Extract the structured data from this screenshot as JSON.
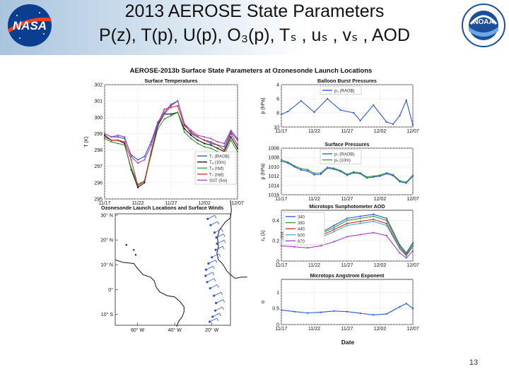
{
  "slide": {
    "title_line1": "2013 AEROSE State Parameters",
    "title_line2": "P(z), T(p), U(p), O₃(p), Tₛ , uₛ , vₛ , AOD",
    "page_number": "13",
    "logo_left": "NASA",
    "logo_right": "NOAA"
  },
  "figure": {
    "title": "AEROSE-2013b Surface State Parameters at Ozonesonde Launch Locations",
    "xlabel": "Date"
  },
  "colors": {
    "blue": "#2a55d8",
    "black": "#111111",
    "green": "#2e9a3a",
    "red": "#d42a2a",
    "purple": "#a040c0",
    "grey": "#999999",
    "cyan": "#4aa8c8"
  },
  "chart_data": [
    {
      "id": "surface-temperatures",
      "type": "line",
      "title": "Surface Temperatures",
      "xlabel": "",
      "ylabel": "T (K)",
      "xlim": [
        0,
        20
      ],
      "ylim": [
        295,
        302
      ],
      "yticks": [
        295,
        296,
        297,
        298,
        299,
        300,
        301,
        302
      ],
      "xticks": [
        0,
        5,
        10,
        15,
        20
      ],
      "xticklabels": [
        "11/17",
        "11/22",
        "11/27",
        "12/02",
        "12/07"
      ],
      "series": [
        {
          "name": "Tₛ (RAOB)",
          "color": "#2a55d8",
          "x": [
            0,
            1,
            2,
            3,
            4,
            5,
            6,
            7,
            8,
            9,
            10,
            11,
            12,
            13,
            14,
            15,
            16,
            17,
            18,
            19,
            20
          ],
          "values": [
            299.0,
            298.8,
            298.8,
            298.7,
            297.7,
            297.4,
            297.6,
            298.5,
            299.7,
            300.3,
            300.8,
            301.0,
            299.6,
            299.0,
            298.8,
            298.6,
            298.4,
            298.3,
            298.2,
            299.1,
            298.6
          ]
        },
        {
          "name": "Tₐ (10m)",
          "color": "#111111",
          "x": [
            0,
            1,
            2,
            3,
            4,
            5,
            6,
            7,
            8,
            9,
            10,
            11,
            12,
            13,
            14,
            15,
            16,
            17,
            18,
            19,
            20
          ],
          "values": [
            298.9,
            298.6,
            298.6,
            298.4,
            296.8,
            295.7,
            296.0,
            297.8,
            299.5,
            300.2,
            300.2,
            300.3,
            299.3,
            298.9,
            298.6,
            298.4,
            298.3,
            298.1,
            297.9,
            298.8,
            298.1
          ]
        },
        {
          "name": "Tₐ (rad)",
          "color": "#2e9a3a",
          "x": [
            0,
            1,
            2,
            3,
            4,
            5,
            6,
            7,
            8,
            9,
            10,
            11,
            12,
            13,
            14,
            15,
            16,
            17,
            18,
            19,
            20
          ],
          "values": [
            298.7,
            298.5,
            298.4,
            298.3,
            296.9,
            295.9,
            296.1,
            297.7,
            299.3,
            299.9,
            300.1,
            300.3,
            299.1,
            298.7,
            298.4,
            298.2,
            298.1,
            297.9,
            297.7,
            298.6,
            297.9
          ]
        },
        {
          "name": "Tₛ (rad)",
          "color": "#d42a2a",
          "x": [
            0,
            1,
            2,
            3,
            4,
            5,
            6,
            7,
            8,
            9,
            10,
            11,
            12,
            13,
            14,
            15,
            16,
            17,
            18,
            19,
            20
          ],
          "values": [
            298.8,
            298.6,
            298.6,
            298.5,
            297.4,
            295.8,
            296.1,
            297.9,
            299.6,
            300.5,
            300.6,
            300.7,
            299.5,
            299.1,
            298.8,
            298.6,
            298.5,
            298.3,
            298.0,
            299.0,
            298.3
          ]
        },
        {
          "name": "SST (5m)",
          "color": "#a040c0",
          "x": [
            0,
            1,
            2,
            3,
            4,
            5,
            6,
            7,
            8,
            9,
            10,
            11,
            12,
            13,
            14,
            15,
            16,
            17,
            18,
            19,
            20
          ],
          "values": [
            299.0,
            298.8,
            298.9,
            298.8,
            297.6,
            297.2,
            297.4,
            298.3,
            299.6,
            300.2,
            300.7,
            301.0,
            299.6,
            299.2,
            298.9,
            298.8,
            298.7,
            298.5,
            298.4,
            299.2,
            298.7
          ]
        }
      ]
    },
    {
      "id": "balloon-burst-pressures",
      "type": "line",
      "title": "Balloon Burst Pressures",
      "xlabel": "",
      "ylabel": "p (hPa)",
      "xlim": [
        0,
        20
      ],
      "ylim": [
        10,
        4
      ],
      "inverted": true,
      "yticks": [
        4,
        6,
        8,
        10
      ],
      "xticks": [
        0,
        5,
        10,
        15,
        20
      ],
      "xticklabels": [
        "11/17",
        "11/22",
        "11/27",
        "12/02",
        "12/07"
      ],
      "series": [
        {
          "name": "p₀ (RAOB)",
          "color": "#2a55d8",
          "x": [
            0,
            1,
            3,
            5,
            7,
            9,
            11,
            12,
            14,
            16,
            17,
            18,
            19,
            20
          ],
          "values": [
            8.2,
            7.8,
            6.3,
            7.9,
            6.0,
            7.6,
            8.0,
            9.1,
            6.9,
            9.3,
            9.6,
            8.4,
            6.2,
            9.7
          ]
        }
      ]
    },
    {
      "id": "surface-pressures",
      "type": "line",
      "title": "Surface Pressures",
      "xlabel": "",
      "ylabel": "p (hPa)",
      "xlim": [
        0,
        20
      ],
      "ylim": [
        1016,
        1006
      ],
      "inverted": true,
      "yticks": [
        1006,
        1008,
        1010,
        1012,
        1014,
        1016
      ],
      "xticks": [
        0,
        5,
        10,
        15,
        20
      ],
      "xticklabels": [
        "11/17",
        "11/22",
        "11/27",
        "12/02",
        "12/07"
      ],
      "series": [
        {
          "name": "pₛ (RAOB)",
          "color": "#2a55d8",
          "x": [
            0,
            1,
            2,
            3,
            4,
            5,
            6,
            7,
            8,
            9,
            10,
            11,
            12,
            13,
            14,
            15,
            16,
            17,
            18,
            19,
            20
          ],
          "values": [
            1008.8,
            1009.2,
            1010.0,
            1010.7,
            1010.9,
            1011.7,
            1011.6,
            1010.3,
            1010.5,
            1011.0,
            1011.8,
            1011.3,
            1011.5,
            1012.4,
            1012.2,
            1012.0,
            1011.5,
            1011.9,
            1013.2,
            1013.5,
            1012.0
          ]
        },
        {
          "name": "pₛ (10m)",
          "color": "#2e9a3a",
          "x": [
            0,
            1,
            2,
            3,
            4,
            5,
            6,
            7,
            8,
            9,
            10,
            11,
            12,
            13,
            14,
            15,
            16,
            17,
            18,
            19,
            20
          ],
          "values": [
            1008.5,
            1009.0,
            1009.8,
            1010.4,
            1010.6,
            1011.4,
            1011.3,
            1010.1,
            1010.3,
            1010.8,
            1011.6,
            1011.1,
            1011.3,
            1012.2,
            1012.0,
            1011.8,
            1011.3,
            1011.7,
            1013.0,
            1013.3,
            1011.8
          ]
        }
      ]
    },
    {
      "id": "microtops-aod",
      "type": "line",
      "title": "Microtops Sunphotometer AOD",
      "xlabel": "",
      "ylabel": "τₐ (λ)",
      "xlim": [
        0,
        20
      ],
      "ylim": [
        0,
        0.5
      ],
      "yticks": [
        0,
        0.2,
        0.4
      ],
      "xticks": [
        0,
        5,
        10,
        15,
        20
      ],
      "xticklabels": [
        "11/17",
        "11/22",
        "11/27",
        "12/02",
        "12/07"
      ],
      "series": [
        {
          "name": "340",
          "color": "#2a55d8",
          "x": [
            0,
            2,
            4,
            6,
            8,
            10,
            12,
            14,
            16,
            18,
            19,
            20
          ],
          "values": [
            0.28,
            0.26,
            0.25,
            0.28,
            0.35,
            0.42,
            0.44,
            0.46,
            0.42,
            0.16,
            0.08,
            0.18
          ]
        },
        {
          "name": "380",
          "color": "#2e9a3a",
          "x": [
            0,
            2,
            4,
            6,
            8,
            10,
            12,
            14,
            16,
            18,
            19,
            20
          ],
          "values": [
            0.26,
            0.25,
            0.24,
            0.27,
            0.33,
            0.4,
            0.42,
            0.44,
            0.4,
            0.15,
            0.07,
            0.17
          ]
        },
        {
          "name": "440",
          "color": "#d42a2a",
          "x": [
            0,
            2,
            4,
            6,
            8,
            10,
            12,
            14,
            16,
            18,
            19,
            20
          ],
          "values": [
            0.24,
            0.23,
            0.22,
            0.25,
            0.31,
            0.37,
            0.39,
            0.41,
            0.37,
            0.13,
            0.06,
            0.15
          ]
        },
        {
          "name": "500",
          "color": "#4aa8c8",
          "x": [
            0,
            2,
            4,
            6,
            8,
            10,
            12,
            14,
            16,
            18,
            19,
            20
          ],
          "values": [
            0.22,
            0.21,
            0.2,
            0.23,
            0.29,
            0.35,
            0.37,
            0.39,
            0.35,
            0.12,
            0.05,
            0.14
          ]
        },
        {
          "name": "870",
          "color": "#a040c0",
          "x": [
            0,
            2,
            4,
            6,
            8,
            10,
            12,
            14,
            16,
            18,
            19,
            20
          ],
          "values": [
            0.15,
            0.14,
            0.13,
            0.15,
            0.19,
            0.24,
            0.26,
            0.28,
            0.25,
            0.08,
            0.03,
            0.1
          ]
        }
      ]
    },
    {
      "id": "angstrom-exponent",
      "type": "line",
      "title": "Microtops Angstrom Exponent",
      "xlabel": "Date",
      "ylabel": "α",
      "xlim": [
        0,
        20
      ],
      "ylim": [
        0,
        1.4
      ],
      "yticks": [
        0,
        0.5,
        1
      ],
      "xticks": [
        0,
        5,
        10,
        15,
        20
      ],
      "xticklabels": [
        "11/17",
        "11/22",
        "11/27",
        "12/02",
        "12/07"
      ],
      "series": [
        {
          "name": "α",
          "color": "#2a55d8",
          "x": [
            0,
            2,
            4,
            6,
            8,
            10,
            12,
            14,
            16,
            18,
            19,
            20
          ],
          "values": [
            0.45,
            0.4,
            0.36,
            0.38,
            0.42,
            0.4,
            0.35,
            0.3,
            0.33,
            0.55,
            0.65,
            0.5
          ]
        }
      ]
    },
    {
      "id": "launch-map",
      "type": "map",
      "title": "Ozonesonde Launch Locations and Surface Winds",
      "lat_ticks": [
        "30° N",
        "20° N",
        "10° N",
        "0°",
        "10° S"
      ],
      "lon_ticks": [
        "60° W",
        "40° W",
        "20° W"
      ],
      "track_lat": [
        28.5,
        26.0,
        23.0,
        21.0,
        18.5,
        16.0,
        13.0,
        10.5,
        8.0,
        5.5,
        3.0,
        0.5,
        -2.5,
        -5.5,
        -8.5,
        -11.0,
        -13.0
      ]
    }
  ]
}
